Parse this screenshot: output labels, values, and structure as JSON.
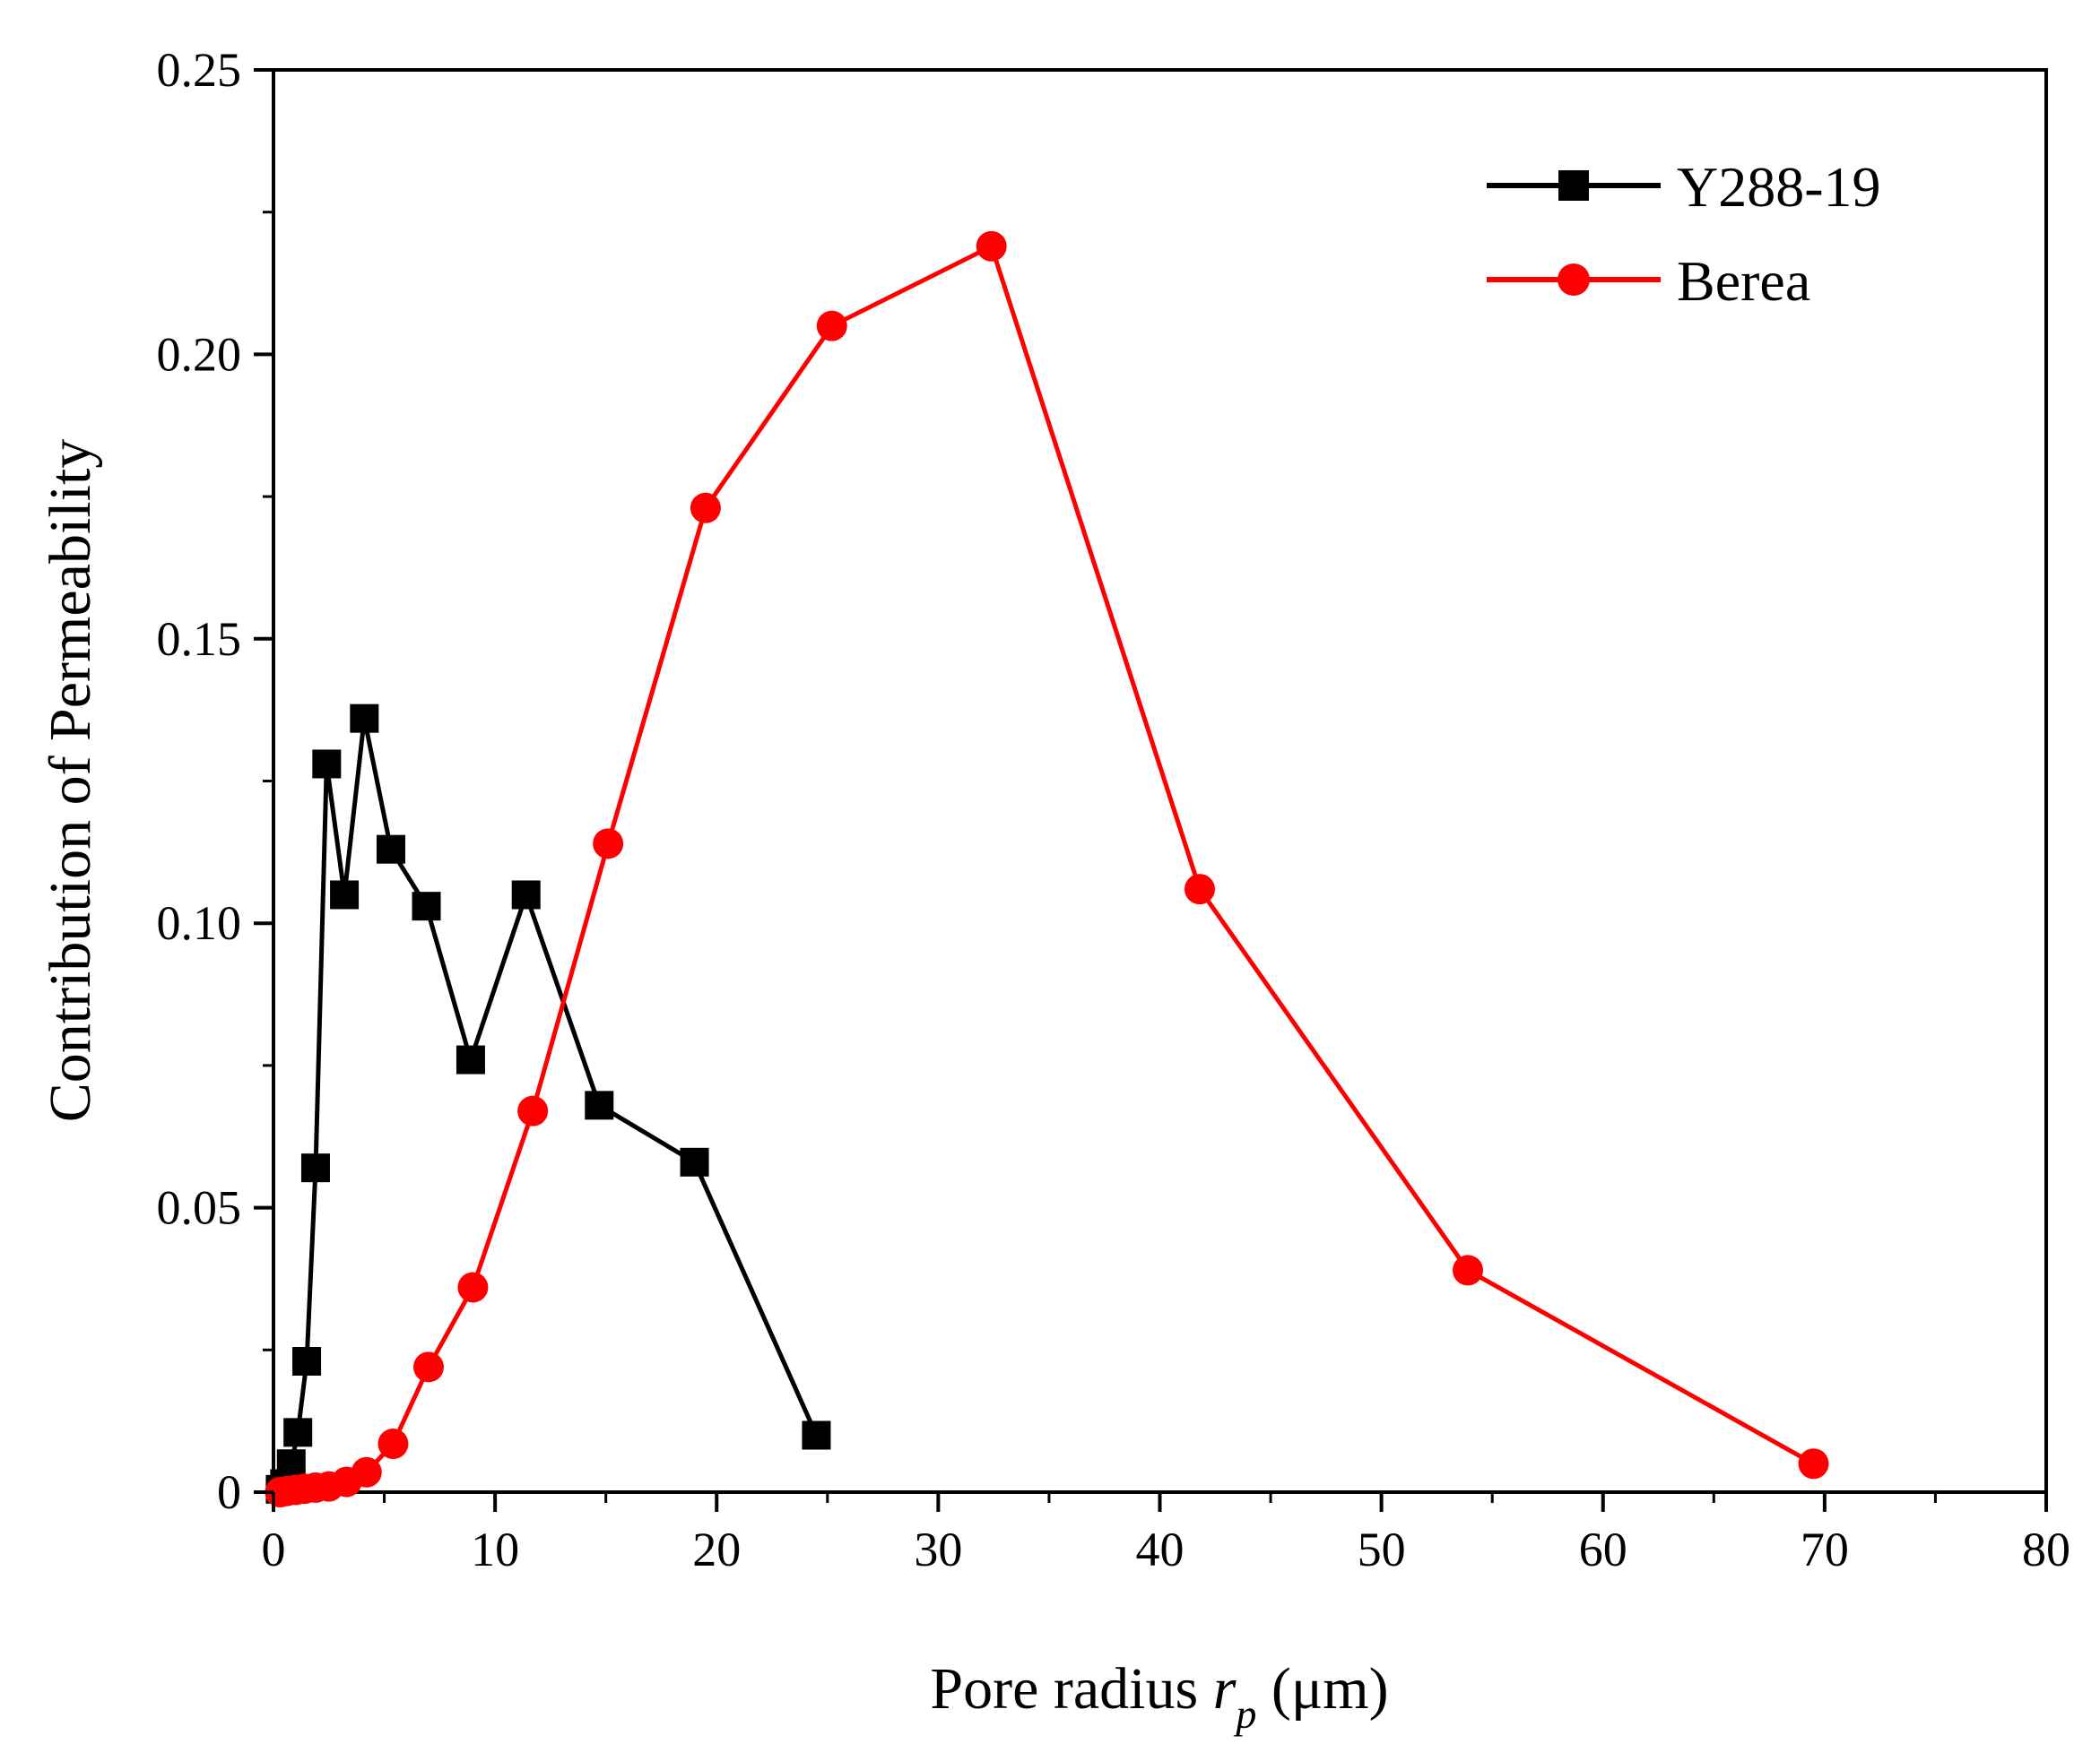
{
  "chart_data": {
    "type": "line",
    "title": "",
    "xlabel": {
      "prefix": "Pore radius ",
      "var": "r",
      "sub": "p",
      "unit": " (μm)"
    },
    "ylabel": "Contribution of Permeability",
    "xlim": [
      0,
      80
    ],
    "ylim": [
      0,
      0.25
    ],
    "xticks": [
      0,
      10,
      20,
      30,
      40,
      50,
      60,
      70,
      80
    ],
    "xtick_labels": [
      "0",
      "10",
      "20",
      "30",
      "40",
      "50",
      "60",
      "70",
      "80"
    ],
    "yticks": [
      0,
      0.05,
      0.1,
      0.15,
      0.2,
      0.25
    ],
    "ytick_labels": [
      "0",
      "0.05",
      "0.10",
      "0.15",
      "0.20",
      "0.25"
    ],
    "grid": false,
    "legend_position": "top-right",
    "series": [
      {
        "name": "Y288-19",
        "color": "#000000",
        "marker": "square",
        "x": [
          0.3,
          0.5,
          0.8,
          1.1,
          1.5,
          1.9,
          2.4,
          3.2,
          4.1,
          5.3,
          6.9,
          8.9,
          11.4,
          14.7,
          19.0,
          24.5
        ],
        "y": [
          0.0005,
          0.0015,
          0.005,
          0.0105,
          0.023,
          0.057,
          0.128,
          0.105,
          0.136,
          0.113,
          0.103,
          0.076,
          0.105,
          0.068,
          0.058,
          0.01
        ]
      },
      {
        "name": "Berea",
        "color": "#ff0000",
        "marker": "circle",
        "x": [
          0.3,
          0.6,
          1.0,
          1.4,
          1.9,
          2.5,
          3.3,
          4.2,
          5.4,
          7.0,
          9.0,
          11.7,
          15.1,
          19.5,
          25.2,
          32.4,
          41.8,
          53.9,
          69.5
        ],
        "y": [
          0.0,
          0.0002,
          0.0004,
          0.0006,
          0.0008,
          0.001,
          0.0018,
          0.0035,
          0.0085,
          0.022,
          0.036,
          0.067,
          0.114,
          0.173,
          0.205,
          0.219,
          0.106,
          0.039,
          0.005
        ]
      }
    ]
  }
}
